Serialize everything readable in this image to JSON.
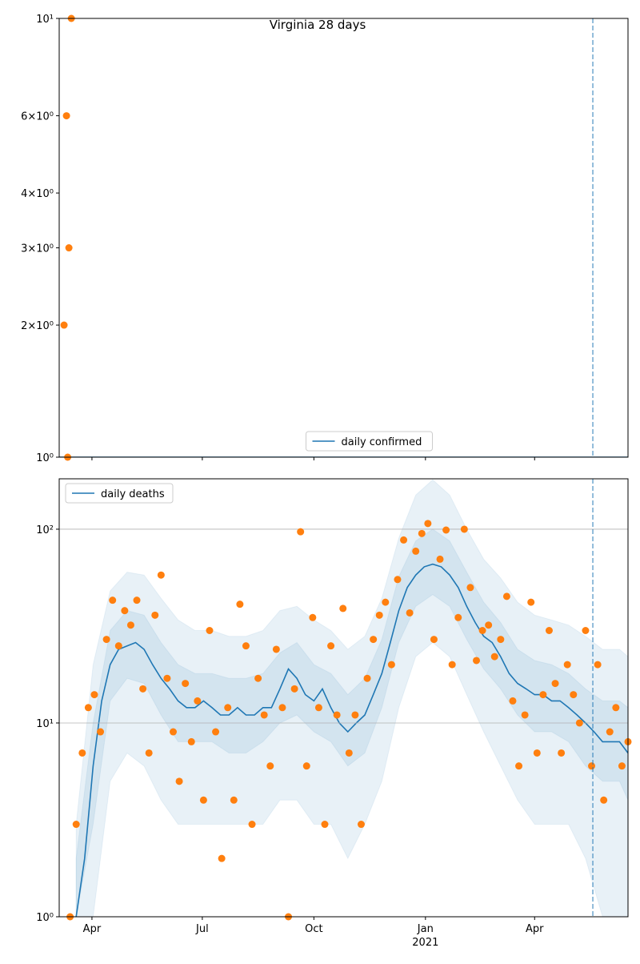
{
  "chart_data": [
    {
      "type": "line",
      "title": "Virginia 28 days",
      "xlim": [
        "2020-03-05",
        "2021-06-17"
      ],
      "xticks": [
        "2020-04-01",
        "2020-07-01",
        "2020-10-01",
        "2021-01-01",
        "2021-04-01"
      ],
      "ylim": [
        1,
        10
      ],
      "log_y": true,
      "grid": false,
      "legend": "lower center",
      "yticks": [
        {
          "value": 1,
          "label": "10⁰"
        },
        {
          "value": 2,
          "label": "2×10⁰"
        },
        {
          "value": 3,
          "label": "3×10⁰"
        },
        {
          "value": 4,
          "label": "4×10⁰"
        },
        {
          "value": 6,
          "label": "6×10⁰"
        },
        {
          "value": 10,
          "label": "10¹"
        }
      ],
      "vline": "2021-05-19",
      "x": [
        "2020-03-05",
        "2021-06-17"
      ],
      "series": [
        {
          "name": "daily confirmed",
          "color": "#1f77b4",
          "values": [
            1,
            1
          ]
        }
      ],
      "scatter": {
        "color": "#ff7f0e",
        "x": [
          "2020-03-09",
          "2020-03-11",
          "2020-03-12",
          "2020-03-13",
          "2020-03-15"
        ],
        "values": [
          2,
          6,
          1,
          3,
          10
        ]
      }
    },
    {
      "type": "line",
      "xlim": [
        "2020-03-05",
        "2021-06-17"
      ],
      "xticks": [
        {
          "value": "2020-04-01",
          "label": "Apr"
        },
        {
          "value": "2020-07-01",
          "label": "Jul"
        },
        {
          "value": "2020-10-01",
          "label": "Oct"
        },
        {
          "value": "2021-01-01",
          "label": "Jan"
        },
        {
          "value": "2021-04-01",
          "label": "Apr"
        }
      ],
      "year_label": "2021",
      "ylim": [
        1,
        182
      ],
      "log_y": true,
      "grid": true,
      "legend": "upper left",
      "yticks": [
        {
          "value": 1,
          "label": "10⁰"
        },
        {
          "value": 10,
          "label": "10¹"
        },
        {
          "value": 100,
          "label": "10²"
        }
      ],
      "vline": "2021-05-19",
      "x": [
        "2020-03-19",
        "2020-03-26",
        "2020-04-02",
        "2020-04-09",
        "2020-04-16",
        "2020-04-23",
        "2020-04-30",
        "2020-05-07",
        "2020-05-14",
        "2020-05-21",
        "2020-05-28",
        "2020-06-04",
        "2020-06-11",
        "2020-06-18",
        "2020-06-25",
        "2020-07-02",
        "2020-07-09",
        "2020-07-16",
        "2020-07-23",
        "2020-07-30",
        "2020-08-06",
        "2020-08-13",
        "2020-08-20",
        "2020-08-27",
        "2020-09-03",
        "2020-09-10",
        "2020-09-17",
        "2020-09-24",
        "2020-10-01",
        "2020-10-08",
        "2020-10-15",
        "2020-10-22",
        "2020-10-29",
        "2020-11-05",
        "2020-11-12",
        "2020-11-19",
        "2020-11-26",
        "2020-12-03",
        "2020-12-10",
        "2020-12-17",
        "2020-12-24",
        "2020-12-31",
        "2021-01-07",
        "2021-01-14",
        "2021-01-21",
        "2021-01-28",
        "2021-02-04",
        "2021-02-11",
        "2021-02-18",
        "2021-02-25",
        "2021-03-04",
        "2021-03-11",
        "2021-03-18",
        "2021-03-25",
        "2021-04-01",
        "2021-04-08",
        "2021-04-15",
        "2021-04-22",
        "2021-04-29",
        "2021-05-06",
        "2021-05-13",
        "2021-05-20",
        "2021-05-27",
        "2021-06-03",
        "2021-06-10",
        "2021-06-17"
      ],
      "series": [
        {
          "name": "daily deaths",
          "color": "#1f77b4",
          "values": [
            1,
            2,
            6,
            13,
            20,
            24,
            25,
            26,
            24,
            20,
            17,
            15,
            13,
            12,
            12,
            13,
            12,
            11,
            11,
            12,
            11,
            11,
            12,
            12,
            15,
            19,
            17,
            14,
            13,
            15,
            12,
            10,
            9,
            10,
            11,
            14,
            18,
            26,
            38,
            50,
            58,
            64,
            66,
            64,
            58,
            50,
            40,
            33,
            28,
            26,
            22,
            18,
            16,
            15,
            14,
            14,
            13,
            13,
            12,
            11,
            10,
            9,
            8,
            8,
            8,
            7
          ]
        }
      ],
      "bands": {
        "color": "#1f77b4",
        "x": [
          "2020-03-19",
          "2020-04-02",
          "2020-04-16",
          "2020-04-30",
          "2020-05-14",
          "2020-05-28",
          "2020-06-11",
          "2020-06-25",
          "2020-07-09",
          "2020-07-23",
          "2020-08-06",
          "2020-08-20",
          "2020-09-03",
          "2020-09-17",
          "2020-10-01",
          "2020-10-15",
          "2020-10-29",
          "2020-11-12",
          "2020-11-26",
          "2020-12-10",
          "2020-12-24",
          "2021-01-07",
          "2021-01-21",
          "2021-02-04",
          "2021-02-18",
          "2021-03-04",
          "2021-03-18",
          "2021-04-01",
          "2021-04-15",
          "2021-04-29",
          "2021-05-13",
          "2021-05-27",
          "2021-06-10",
          "2021-06-17"
        ],
        "series": [
          {
            "lower": [
              1,
              1,
              5,
              7,
              6,
              4,
              3,
              3,
              3,
              3,
              3,
              3,
              4,
              4,
              3,
              3,
              2,
              3,
              5,
              12,
              22,
              26,
              22,
              14,
              9,
              6,
              4,
              3,
              3,
              3,
              2,
              1,
              1,
              1
            ],
            "upper": [
              3,
              20,
              48,
              60,
              58,
              44,
              34,
              30,
              30,
              28,
              28,
              30,
              38,
              40,
              34,
              30,
              24,
              28,
              44,
              90,
              150,
              180,
              150,
              100,
              70,
              56,
              42,
              36,
              34,
              32,
              28,
              24,
              24,
              22
            ]
          },
          {
            "lower": [
              1,
              3,
              13,
              17,
              16,
              11,
              8,
              8,
              8,
              7,
              7,
              8,
              10,
              11,
              9,
              8,
              6,
              7,
              12,
              26,
              40,
              46,
              40,
              27,
              19,
              15,
              11,
              9,
              9,
              8,
              6,
              5,
              5,
              4
            ],
            "upper": [
              2,
              10,
              30,
              38,
              36,
              26,
              20,
              18,
              18,
              17,
              17,
              18,
              23,
              26,
              20,
              18,
              14,
              17,
              27,
              57,
              87,
              100,
              87,
              60,
              42,
              33,
              24,
              21,
              20,
              18,
              15,
              13,
              13,
              12
            ]
          }
        ]
      },
      "scatter": {
        "color": "#ff7f0e",
        "x": [
          "2020-03-14",
          "2020-03-19",
          "2020-03-24",
          "2020-03-29",
          "2020-04-03",
          "2020-04-08",
          "2020-04-13",
          "2020-04-18",
          "2020-04-23",
          "2020-04-28",
          "2020-05-03",
          "2020-05-08",
          "2020-05-13",
          "2020-05-18",
          "2020-05-23",
          "2020-05-28",
          "2020-06-02",
          "2020-06-07",
          "2020-06-12",
          "2020-06-17",
          "2020-06-22",
          "2020-06-27",
          "2020-07-02",
          "2020-07-07",
          "2020-07-12",
          "2020-07-17",
          "2020-07-22",
          "2020-07-27",
          "2020-08-01",
          "2020-08-06",
          "2020-08-11",
          "2020-08-16",
          "2020-08-21",
          "2020-08-26",
          "2020-08-31",
          "2020-09-05",
          "2020-09-10",
          "2020-09-15",
          "2020-09-20",
          "2020-09-25",
          "2020-09-30",
          "2020-10-05",
          "2020-10-10",
          "2020-10-15",
          "2020-10-20",
          "2020-10-25",
          "2020-10-30",
          "2020-11-04",
          "2020-11-09",
          "2020-11-14",
          "2020-11-19",
          "2020-11-24",
          "2020-11-29",
          "2020-12-04",
          "2020-12-09",
          "2020-12-14",
          "2020-12-19",
          "2020-12-24",
          "2020-12-29",
          "2021-01-03",
          "2021-01-08",
          "2021-01-13",
          "2021-01-18",
          "2021-01-23",
          "2021-01-28",
          "2021-02-02",
          "2021-02-07",
          "2021-02-12",
          "2021-02-17",
          "2021-02-22",
          "2021-02-27",
          "2021-03-04",
          "2021-03-09",
          "2021-03-14",
          "2021-03-19",
          "2021-03-24",
          "2021-03-29",
          "2021-04-03",
          "2021-04-08",
          "2021-04-13",
          "2021-04-18",
          "2021-04-23",
          "2021-04-28",
          "2021-05-03",
          "2021-05-08",
          "2021-05-13",
          "2021-05-18",
          "2021-05-23",
          "2021-05-28",
          "2021-06-02",
          "2021-06-07",
          "2021-06-12",
          "2021-06-17"
        ],
        "values": [
          1,
          3,
          7,
          12,
          14,
          9,
          27,
          43,
          25,
          38,
          32,
          43,
          15,
          7,
          36,
          58,
          17,
          9,
          5,
          16,
          8,
          13,
          4,
          30,
          9,
          2,
          12,
          4,
          41,
          25,
          3,
          17,
          11,
          6,
          24,
          12,
          1,
          15,
          97,
          6,
          35,
          12,
          3,
          25,
          11,
          39,
          7,
          11,
          3,
          17,
          27,
          36,
          42,
          20,
          55,
          88,
          37,
          77,
          95,
          107,
          27,
          70,
          99,
          20,
          35,
          100,
          50,
          21,
          30,
          32,
          22,
          27,
          45,
          13,
          6,
          11,
          42,
          7,
          14,
          30,
          16,
          7,
          20,
          14,
          10,
          30,
          6,
          20,
          4,
          9,
          12,
          6,
          8
        ]
      }
    }
  ]
}
